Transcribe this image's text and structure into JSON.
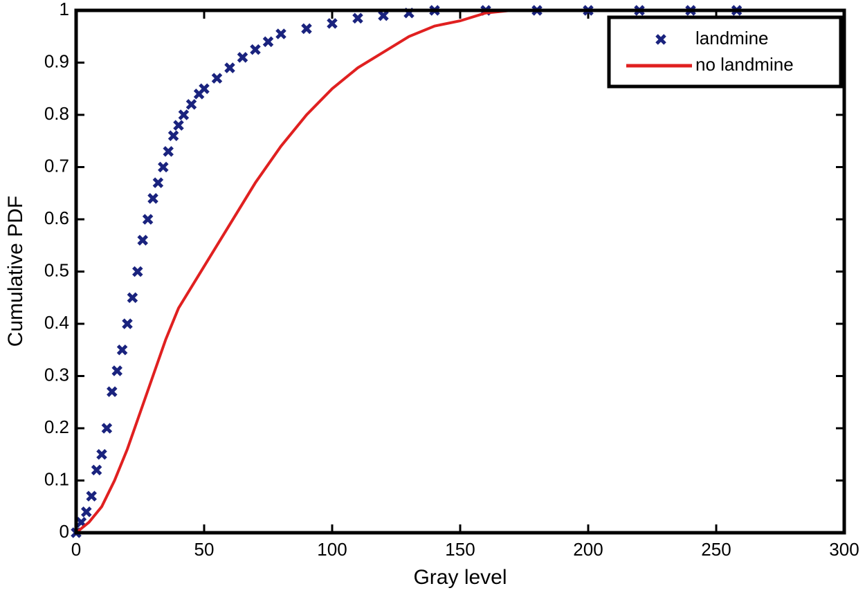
{
  "chart_data": {
    "type": "line",
    "xlabel": "Gray level",
    "ylabel": "Cumulative PDF",
    "xlim": [
      0,
      300
    ],
    "ylim": [
      0,
      1
    ],
    "xticks": [
      0,
      50,
      100,
      150,
      200,
      250,
      300
    ],
    "yticks": [
      0,
      0.1,
      0.2,
      0.3,
      0.4,
      0.5,
      0.6,
      0.7,
      0.8,
      0.9,
      1
    ],
    "legend": "upper right",
    "series": [
      {
        "name": "landmine",
        "color": "#1a237e",
        "style": "markers",
        "x": [
          0,
          2,
          4,
          6,
          8,
          10,
          12,
          14,
          16,
          18,
          20,
          22,
          24,
          26,
          28,
          30,
          32,
          34,
          36,
          38,
          40,
          42,
          45,
          48,
          50,
          55,
          60,
          65,
          70,
          75,
          80,
          90,
          100,
          110,
          120,
          130,
          140,
          160,
          180,
          200,
          220,
          240,
          258
        ],
        "values": [
          0,
          0.02,
          0.04,
          0.07,
          0.12,
          0.15,
          0.2,
          0.27,
          0.31,
          0.35,
          0.4,
          0.45,
          0.5,
          0.56,
          0.6,
          0.64,
          0.67,
          0.7,
          0.73,
          0.76,
          0.78,
          0.8,
          0.82,
          0.84,
          0.85,
          0.87,
          0.89,
          0.91,
          0.925,
          0.94,
          0.955,
          0.965,
          0.975,
          0.985,
          0.99,
          0.995,
          1,
          1,
          1,
          1,
          1,
          1,
          1
        ]
      },
      {
        "name": "no landmine",
        "color": "#e02020",
        "style": "line",
        "x": [
          0,
          5,
          10,
          15,
          20,
          25,
          30,
          35,
          40,
          50,
          60,
          70,
          80,
          90,
          100,
          110,
          120,
          130,
          140,
          150,
          160,
          170,
          200,
          258
        ],
        "values": [
          0,
          0.02,
          0.05,
          0.1,
          0.16,
          0.23,
          0.3,
          0.37,
          0.43,
          0.51,
          0.59,
          0.67,
          0.74,
          0.8,
          0.85,
          0.89,
          0.92,
          0.95,
          0.97,
          0.98,
          0.995,
          1,
          1,
          1
        ]
      }
    ]
  }
}
